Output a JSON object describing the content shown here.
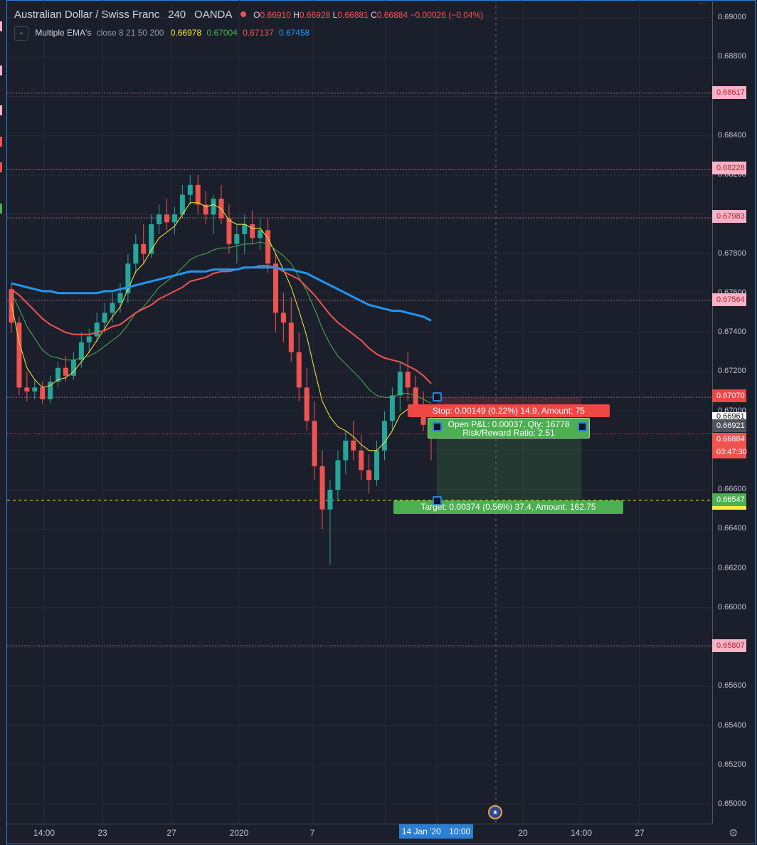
{
  "header": {
    "symbol": "Australian Dollar / Swiss Franc",
    "interval": "240",
    "broker": "OANDA",
    "open_label": "O",
    "open": "0.66910",
    "high_label": "H",
    "high": "0.66928",
    "low_label": "L",
    "low": "0.66881",
    "close_label": "C",
    "close": "0.66884",
    "change": "−0.00026 (−0.04%)"
  },
  "indicator": {
    "name": "Multiple EMA's",
    "params": "close 8 21 50 200",
    "values": [
      "0.66978",
      "0.67004",
      "0.67137",
      "0.67458"
    ],
    "colors": [
      "#ffeb3b",
      "#4caf50",
      "#ef5350",
      "#2196f3"
    ]
  },
  "price_axis": {
    "ticks": [
      "0.69000",
      "0.68800",
      "0.68400",
      "0.68200",
      "0.67800",
      "0.67600",
      "0.67400",
      "0.67200",
      "0.67000",
      "0.66600",
      "0.66400",
      "0.66200",
      "0.66000",
      "0.65600",
      "0.65400",
      "0.65200",
      "0.65000"
    ],
    "alert_levels": [
      "0.68617",
      "0.68228",
      "0.67983",
      "0.67564",
      "0.67070",
      "0.65807"
    ],
    "stop_level": "0.67070",
    "position_level": "0.66961",
    "current_price": "0.66921",
    "last_price": "0.66884",
    "countdown": "03:47:30",
    "target_level": "0.66547"
  },
  "time_axis": {
    "labels": [
      "14:00",
      "23",
      "27",
      "2020",
      "7",
      "20",
      "14:00",
      "27"
    ],
    "current": "14 Jan '20",
    "current_time": "10:00"
  },
  "position": {
    "stop_text": "Stop: 0.00149 (0.22%) 14.9, Amount: 75",
    "pnl_text": "Open P&L: 0.00037, Qty: 16778",
    "rr_text": "Risk/Reward Ratio: 2.51",
    "target_text": "Target: 0.00374 (0.56%) 37.4, Amount: 162.75"
  },
  "colors": {
    "background": "#1b1f2b",
    "up_candle": "#26a69a",
    "down_candle": "#ef5350",
    "alert_badge": "#f8b2c8",
    "target_line": "#ffeb3b",
    "stop_fill": "rgba(239,83,80,0.18)",
    "target_fill": "rgba(76,175,80,0.18)"
  },
  "chart_data": {
    "type": "candlestick",
    "title": "Australian Dollar / Swiss Franc 240 OANDA",
    "ylim": [
      0.6495,
      0.6912
    ],
    "candles": [
      [
        0.6762,
        0.6765,
        0.674,
        0.6745
      ],
      [
        0.6745,
        0.6748,
        0.6708,
        0.6712
      ],
      [
        0.6712,
        0.672,
        0.6705,
        0.671
      ],
      [
        0.671,
        0.6716,
        0.6706,
        0.6712
      ],
      [
        0.6712,
        0.6715,
        0.6704,
        0.6706
      ],
      [
        0.6706,
        0.6718,
        0.6704,
        0.6715
      ],
      [
        0.6715,
        0.6725,
        0.6712,
        0.6722
      ],
      [
        0.6722,
        0.6728,
        0.6715,
        0.6718
      ],
      [
        0.6718,
        0.673,
        0.6716,
        0.6726
      ],
      [
        0.6726,
        0.674,
        0.6722,
        0.6735
      ],
      [
        0.6735,
        0.6742,
        0.673,
        0.6738
      ],
      [
        0.6738,
        0.675,
        0.6735,
        0.6745
      ],
      [
        0.6745,
        0.6755,
        0.674,
        0.675
      ],
      [
        0.675,
        0.676,
        0.6745,
        0.6755
      ],
      [
        0.6755,
        0.6765,
        0.675,
        0.676
      ],
      [
        0.676,
        0.678,
        0.6755,
        0.6775
      ],
      [
        0.6775,
        0.679,
        0.677,
        0.6785
      ],
      [
        0.6785,
        0.6795,
        0.6775,
        0.678
      ],
      [
        0.678,
        0.68,
        0.6778,
        0.6795
      ],
      [
        0.6795,
        0.6805,
        0.679,
        0.68
      ],
      [
        0.68,
        0.6808,
        0.6792,
        0.6796
      ],
      [
        0.6796,
        0.6804,
        0.679,
        0.68
      ],
      [
        0.68,
        0.6815,
        0.6798,
        0.681
      ],
      [
        0.681,
        0.682,
        0.6805,
        0.6815
      ],
      [
        0.6815,
        0.682,
        0.68,
        0.6805
      ],
      [
        0.6805,
        0.6812,
        0.6795,
        0.68
      ],
      [
        0.68,
        0.681,
        0.679,
        0.6808
      ],
      [
        0.6808,
        0.6815,
        0.6795,
        0.6798
      ],
      [
        0.6798,
        0.6805,
        0.678,
        0.6785
      ],
      [
        0.6785,
        0.6795,
        0.6775,
        0.679
      ],
      [
        0.679,
        0.68,
        0.678,
        0.6795
      ],
      [
        0.6795,
        0.6802,
        0.6785,
        0.6788
      ],
      [
        0.6788,
        0.6798,
        0.6782,
        0.6792
      ],
      [
        0.6792,
        0.6798,
        0.677,
        0.6775
      ],
      [
        0.6775,
        0.678,
        0.674,
        0.675
      ],
      [
        0.675,
        0.676,
        0.6735,
        0.6745
      ],
      [
        0.6745,
        0.6758,
        0.6725,
        0.673
      ],
      [
        0.673,
        0.674,
        0.6705,
        0.6712
      ],
      [
        0.6712,
        0.6722,
        0.669,
        0.6695
      ],
      [
        0.6695,
        0.6705,
        0.6665,
        0.6672
      ],
      [
        0.6672,
        0.668,
        0.664,
        0.665
      ],
      [
        0.665,
        0.6665,
        0.6622,
        0.666
      ],
      [
        0.666,
        0.668,
        0.6655,
        0.6675
      ],
      [
        0.6675,
        0.669,
        0.6668,
        0.6685
      ],
      [
        0.6685,
        0.6695,
        0.6675,
        0.668
      ],
      [
        0.668,
        0.6688,
        0.6665,
        0.667
      ],
      [
        0.667,
        0.6678,
        0.6658,
        0.6665
      ],
      [
        0.6665,
        0.6685,
        0.6662,
        0.668
      ],
      [
        0.668,
        0.67,
        0.6675,
        0.6695
      ],
      [
        0.6695,
        0.6712,
        0.669,
        0.6708
      ],
      [
        0.6708,
        0.6725,
        0.67,
        0.672
      ],
      [
        0.672,
        0.673,
        0.6705,
        0.6712
      ],
      [
        0.6712,
        0.6718,
        0.6698,
        0.6702
      ],
      [
        0.6702,
        0.671,
        0.669,
        0.6693
      ],
      [
        0.6693,
        0.67,
        0.6675,
        0.6688
      ]
    ],
    "ema": [
      {
        "name": "EMA 8",
        "color": "#ffeb3b",
        "values": [
          0.6755,
          0.6735,
          0.6722,
          0.6716,
          0.6712,
          0.6713,
          0.6716,
          0.6717,
          0.672,
          0.6725,
          0.673,
          0.6736,
          0.6742,
          0.6748,
          0.6753,
          0.6762,
          0.6771,
          0.6775,
          0.6782,
          0.6788,
          0.6791,
          0.6794,
          0.68,
          0.6806,
          0.6806,
          0.6804,
          0.6805,
          0.6803,
          0.6797,
          0.6795,
          0.6795,
          0.6793,
          0.6793,
          0.6788,
          0.678,
          0.6772,
          0.6763,
          0.6751,
          0.6738,
          0.6721,
          0.6705,
          0.6697,
          0.6692,
          0.669,
          0.6687,
          0.6683,
          0.668,
          0.668,
          0.6684,
          0.669,
          0.6698,
          0.6701,
          0.6701,
          0.6699,
          0.6697
        ]
      },
      {
        "name": "EMA 21",
        "color": "#4caf50",
        "values": [
          0.676,
          0.6752,
          0.6743,
          0.6737,
          0.6731,
          0.6728,
          0.6727,
          0.6726,
          0.6726,
          0.6727,
          0.6728,
          0.673,
          0.6733,
          0.6736,
          0.6739,
          0.6744,
          0.675,
          0.6753,
          0.6758,
          0.6763,
          0.6766,
          0.6769,
          0.6773,
          0.6777,
          0.6779,
          0.678,
          0.6782,
          0.6783,
          0.6783,
          0.6784,
          0.6785,
          0.6785,
          0.6786,
          0.6785,
          0.6782,
          0.6779,
          0.6775,
          0.6768,
          0.6761,
          0.6752,
          0.6742,
          0.6734,
          0.6728,
          0.6724,
          0.672,
          0.6716,
          0.6711,
          0.6708,
          0.6707,
          0.6707,
          0.6709,
          0.6709,
          0.6708,
          0.6706,
          0.6704
        ]
      },
      {
        "name": "EMA 50",
        "color": "#ef5350",
        "values": [
          0.6762,
          0.6759,
          0.6755,
          0.6751,
          0.6747,
          0.6744,
          0.6742,
          0.674,
          0.6739,
          0.6739,
          0.6739,
          0.674,
          0.6741,
          0.6743,
          0.6744,
          0.6747,
          0.675,
          0.6752,
          0.6754,
          0.6757,
          0.6759,
          0.6761,
          0.6763,
          0.6766,
          0.6767,
          0.6768,
          0.677,
          0.6771,
          0.6771,
          0.6772,
          0.6773,
          0.6773,
          0.6774,
          0.6774,
          0.6773,
          0.6771,
          0.6769,
          0.6767,
          0.6763,
          0.6759,
          0.6754,
          0.6749,
          0.6745,
          0.6742,
          0.6739,
          0.6736,
          0.6732,
          0.6729,
          0.6727,
          0.6726,
          0.6725,
          0.6723,
          0.6721,
          0.6718,
          0.6714
        ]
      },
      {
        "name": "EMA 200",
        "color": "#2196f3",
        "values": [
          0.6765,
          0.6764,
          0.6763,
          0.6762,
          0.6761,
          0.6761,
          0.676,
          0.676,
          0.676,
          0.676,
          0.676,
          0.676,
          0.6761,
          0.6761,
          0.6762,
          0.6763,
          0.6764,
          0.6765,
          0.6766,
          0.6767,
          0.6768,
          0.6769,
          0.677,
          0.6771,
          0.6771,
          0.6771,
          0.6772,
          0.6772,
          0.6772,
          0.6772,
          0.6773,
          0.6773,
          0.6773,
          0.6773,
          0.6773,
          0.6772,
          0.6772,
          0.6771,
          0.677,
          0.6768,
          0.6766,
          0.6764,
          0.6762,
          0.676,
          0.6758,
          0.6756,
          0.6754,
          0.6753,
          0.6752,
          0.6751,
          0.6751,
          0.675,
          0.6749,
          0.6748,
          0.6746
        ]
      }
    ],
    "grid": true
  }
}
